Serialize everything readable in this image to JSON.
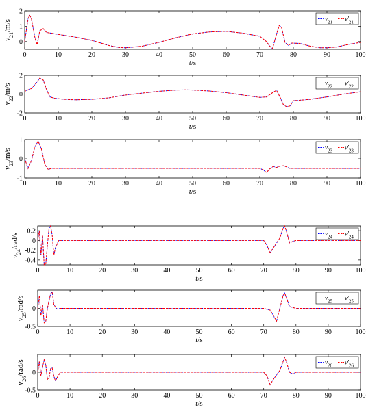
{
  "chart_data": [
    {
      "type": "line",
      "ylabel_main": "v",
      "ylabel_sub": "21",
      "ylabel_unit": "/m/s",
      "xlabel_main": "t",
      "xlabel_unit": "/s",
      "xlim": [
        0,
        100
      ],
      "ylim": [
        -0.5,
        2
      ],
      "xticks": [
        "0",
        "10",
        "20",
        "30",
        "40",
        "50",
        "60",
        "70",
        "80",
        "90",
        "100"
      ],
      "yticks": [
        "0",
        "1",
        "2"
      ],
      "ytick_values": [
        0,
        1,
        2
      ],
      "legend_position": "top-right",
      "series": [
        {
          "name": "v",
          "sub": "21",
          "color": "#0000ff",
          "style": "dotted"
        },
        {
          "name": "v'",
          "sub": "21",
          "color": "#ff0000",
          "style": "dashed"
        }
      ],
      "points": [
        [
          0,
          0
        ],
        [
          1,
          1.5
        ],
        [
          1.5,
          1.7
        ],
        [
          2,
          1.5
        ],
        [
          3,
          0.3
        ],
        [
          3.7,
          -0.2
        ],
        [
          4.5,
          0.7
        ],
        [
          5.5,
          0.85
        ],
        [
          6.5,
          0.6
        ],
        [
          10,
          0.47
        ],
        [
          15,
          0.3
        ],
        [
          20,
          0.08
        ],
        [
          25,
          -0.25
        ],
        [
          28,
          -0.38
        ],
        [
          30,
          -0.4
        ],
        [
          35,
          -0.3
        ],
        [
          40,
          -0.05
        ],
        [
          45,
          0.25
        ],
        [
          50,
          0.5
        ],
        [
          55,
          0.63
        ],
        [
          60,
          0.67
        ],
        [
          65,
          0.55
        ],
        [
          70,
          0.35
        ],
        [
          72,
          0.0
        ],
        [
          73,
          -0.3
        ],
        [
          73.8,
          -0.45
        ],
        [
          75,
          0.5
        ],
        [
          75.8,
          1.05
        ],
        [
          76.5,
          0.9
        ],
        [
          77.5,
          -0.05
        ],
        [
          78.5,
          -0.25
        ],
        [
          79.5,
          -0.1
        ],
        [
          82,
          -0.12
        ],
        [
          85,
          -0.3
        ],
        [
          88,
          -0.4
        ],
        [
          90,
          -0.4
        ],
        [
          93,
          -0.35
        ],
        [
          96,
          -0.2
        ],
        [
          100,
          -0.05
        ]
      ]
    },
    {
      "type": "line",
      "ylabel_main": "v",
      "ylabel_sub": "22",
      "ylabel_unit": "/m/s",
      "xlabel_main": "t",
      "xlabel_unit": "/s",
      "xlim": [
        0,
        100
      ],
      "ylim": [
        -2,
        2
      ],
      "xticks": [
        "0",
        "10",
        "20",
        "30",
        "40",
        "50",
        "60",
        "70",
        "80",
        "90",
        "100"
      ],
      "yticks": [
        "-2",
        "0",
        "2"
      ],
      "ytick_values": [
        -2,
        0,
        2
      ],
      "legend_position": "top-right",
      "series": [
        {
          "name": "v",
          "sub": "22",
          "color": "#0000ff",
          "style": "dotted"
        },
        {
          "name": "v'",
          "sub": "22",
          "color": "#ff0000",
          "style": "dashed"
        }
      ],
      "points": [
        [
          0,
          0.3
        ],
        [
          2,
          0.6
        ],
        [
          3.5,
          1.2
        ],
        [
          4.5,
          1.7
        ],
        [
          5.5,
          1.5
        ],
        [
          6.5,
          0.5
        ],
        [
          7.5,
          -0.3
        ],
        [
          9,
          -0.45
        ],
        [
          12,
          -0.55
        ],
        [
          15,
          -0.6
        ],
        [
          20,
          -0.55
        ],
        [
          25,
          -0.4
        ],
        [
          30,
          -0.1
        ],
        [
          35,
          0.1
        ],
        [
          40,
          0.3
        ],
        [
          45,
          0.42
        ],
        [
          48,
          0.45
        ],
        [
          50,
          0.43
        ],
        [
          55,
          0.33
        ],
        [
          60,
          0.15
        ],
        [
          65,
          -0.1
        ],
        [
          70,
          -0.35
        ],
        [
          72,
          -0.3
        ],
        [
          74,
          0.2
        ],
        [
          75,
          0.4
        ],
        [
          76,
          -0.3
        ],
        [
          77,
          -1.1
        ],
        [
          78,
          -1.35
        ],
        [
          79,
          -1.25
        ],
        [
          80,
          -0.7
        ],
        [
          82,
          -0.65
        ],
        [
          85,
          -0.55
        ],
        [
          90,
          -0.3
        ],
        [
          95,
          0
        ],
        [
          100,
          0.25
        ]
      ]
    },
    {
      "type": "line",
      "ylabel_main": "v",
      "ylabel_sub": "23",
      "ylabel_unit": "/m/s",
      "xlabel_main": "t",
      "xlabel_unit": "/s",
      "xlim": [
        0,
        100
      ],
      "ylim": [
        -1,
        1
      ],
      "xticks": [
        "0",
        "10",
        "20",
        "30",
        "40",
        "50",
        "60",
        "70",
        "80",
        "90",
        "100"
      ],
      "yticks": [
        "-1",
        "0",
        "1"
      ],
      "ytick_values": [
        -1,
        0,
        1
      ],
      "legend_position": "top-right",
      "series": [
        {
          "name": "v",
          "sub": "23",
          "color": "#0000ff",
          "style": "dotted"
        },
        {
          "name": "v'",
          "sub": "23",
          "color": "#ff0000",
          "style": "dashed"
        }
      ],
      "points": [
        [
          0,
          0
        ],
        [
          1,
          -0.5
        ],
        [
          2,
          -0.1
        ],
        [
          3,
          0.6
        ],
        [
          4,
          0.92
        ],
        [
          5,
          0.5
        ],
        [
          6,
          -0.3
        ],
        [
          7,
          -0.55
        ],
        [
          8,
          -0.5
        ],
        [
          70,
          -0.5
        ],
        [
          71,
          -0.58
        ],
        [
          72,
          -0.72
        ],
        [
          73,
          -0.52
        ],
        [
          74,
          -0.4
        ],
        [
          75,
          -0.45
        ],
        [
          76,
          -0.38
        ],
        [
          77,
          -0.36
        ],
        [
          78,
          -0.42
        ],
        [
          79,
          -0.5
        ],
        [
          100,
          -0.5
        ]
      ]
    },
    {
      "type": "line",
      "ylabel_main": "v",
      "ylabel_sub": "24",
      "ylabel_unit": "/rad/s",
      "xlabel_main": "t",
      "xlabel_unit": "/s",
      "xlim": [
        0,
        100
      ],
      "ylim": [
        -0.5,
        0.3
      ],
      "xticks": [
        "0",
        "10",
        "20",
        "30",
        "40",
        "50",
        "60",
        "70",
        "80",
        "90",
        "100"
      ],
      "yticks": [
        "0.2",
        "0",
        "-0.2",
        "-0.4"
      ],
      "ytick_values": [
        0.2,
        0,
        -0.2,
        -0.4
      ],
      "legend_position": "top-right",
      "series": [
        {
          "name": "v",
          "sub": "24",
          "color": "#0000ff",
          "style": "dotted"
        },
        {
          "name": "v'",
          "sub": "24",
          "color": "#ff0000",
          "style": "dashed"
        }
      ],
      "points": [
        [
          0,
          0
        ],
        [
          0.5,
          0.2
        ],
        [
          1,
          -0.3
        ],
        [
          1.5,
          0.1
        ],
        [
          2,
          -0.5
        ],
        [
          2.5,
          -0.48
        ],
        [
          3,
          -0.1
        ],
        [
          3.5,
          0.25
        ],
        [
          4,
          0.3
        ],
        [
          4.5,
          0.1
        ],
        [
          5,
          -0.3
        ],
        [
          5.5,
          -0.15
        ],
        [
          6.5,
          0
        ],
        [
          70,
          0
        ],
        [
          71,
          -0.1
        ],
        [
          72,
          -0.25
        ],
        [
          73,
          -0.15
        ],
        [
          75,
          0.05
        ],
        [
          76,
          0.25
        ],
        [
          76.5,
          0.3
        ],
        [
          77,
          0.2
        ],
        [
          78,
          -0.05
        ],
        [
          79,
          -0.02
        ],
        [
          80,
          0
        ],
        [
          100,
          0
        ]
      ]
    },
    {
      "type": "line",
      "ylabel_main": "v",
      "ylabel_sub": "25",
      "ylabel_unit": "/rad/s",
      "xlabel_main": "t",
      "xlabel_unit": "/s",
      "xlim": [
        0,
        100
      ],
      "ylim": [
        -0.5,
        0.5
      ],
      "xticks": [
        "0",
        "10",
        "20",
        "30",
        "40",
        "50",
        "60",
        "70",
        "80",
        "90",
        "100"
      ],
      "yticks": [
        "0",
        "-0.5"
      ],
      "ytick_values": [
        0,
        -0.5
      ],
      "legend_position": "top-right",
      "series": [
        {
          "name": "v",
          "sub": "25",
          "color": "#0000ff",
          "style": "dotted"
        },
        {
          "name": "v'",
          "sub": "25",
          "color": "#ff0000",
          "style": "dashed"
        }
      ],
      "points": [
        [
          0,
          0
        ],
        [
          0.5,
          0.35
        ],
        [
          1,
          -0.2
        ],
        [
          1.5,
          0.1
        ],
        [
          2,
          -0.4
        ],
        [
          2.5,
          -0.35
        ],
        [
          3,
          0
        ],
        [
          4,
          0.4
        ],
        [
          4.5,
          0.45
        ],
        [
          5,
          0.1
        ],
        [
          6,
          -0.02
        ],
        [
          7,
          0
        ],
        [
          70,
          0
        ],
        [
          72,
          -0.05
        ],
        [
          73,
          -0.2
        ],
        [
          74,
          -0.35
        ],
        [
          75,
          0
        ],
        [
          76,
          0.35
        ],
        [
          76.5,
          0.42
        ],
        [
          77,
          0.3
        ],
        [
          78,
          0.05
        ],
        [
          80,
          0
        ],
        [
          100,
          0
        ]
      ]
    },
    {
      "type": "line",
      "ylabel_main": "v",
      "ylabel_sub": "26",
      "ylabel_unit": "/rad/s",
      "xlabel_main": "t",
      "xlabel_unit": "/s",
      "xlim": [
        0,
        100
      ],
      "ylim": [
        -0.5,
        0.5
      ],
      "xticks": [
        "0",
        "10",
        "20",
        "30",
        "40",
        "50",
        "60",
        "70",
        "80",
        "90",
        "100"
      ],
      "yticks": [
        "0",
        "-0.5"
      ],
      "ytick_values": [
        0,
        -0.5
      ],
      "legend_position": "top-right",
      "series": [
        {
          "name": "v",
          "sub": "26",
          "color": "#0000ff",
          "style": "dotted"
        },
        {
          "name": "v'",
          "sub": "26",
          "color": "#ff0000",
          "style": "dashed"
        }
      ],
      "points": [
        [
          0,
          0
        ],
        [
          0.5,
          0.3
        ],
        [
          1,
          -0.1
        ],
        [
          1.5,
          0.15
        ],
        [
          2,
          0.35
        ],
        [
          2.5,
          0.2
        ],
        [
          3,
          -0.2
        ],
        [
          3.5,
          -0.15
        ],
        [
          4,
          0.1
        ],
        [
          4.5,
          0.12
        ],
        [
          5,
          -0.1
        ],
        [
          5.5,
          -0.25
        ],
        [
          6,
          -0.15
        ],
        [
          7,
          0
        ],
        [
          70,
          0
        ],
        [
          71,
          -0.1
        ],
        [
          72,
          -0.35
        ],
        [
          73,
          -0.2
        ],
        [
          75,
          0.05
        ],
        [
          76,
          0.3
        ],
        [
          76.5,
          0.42
        ],
        [
          77,
          0.3
        ],
        [
          78,
          0
        ],
        [
          79,
          -0.05
        ],
        [
          80,
          0
        ],
        [
          100,
          0
        ]
      ]
    }
  ]
}
